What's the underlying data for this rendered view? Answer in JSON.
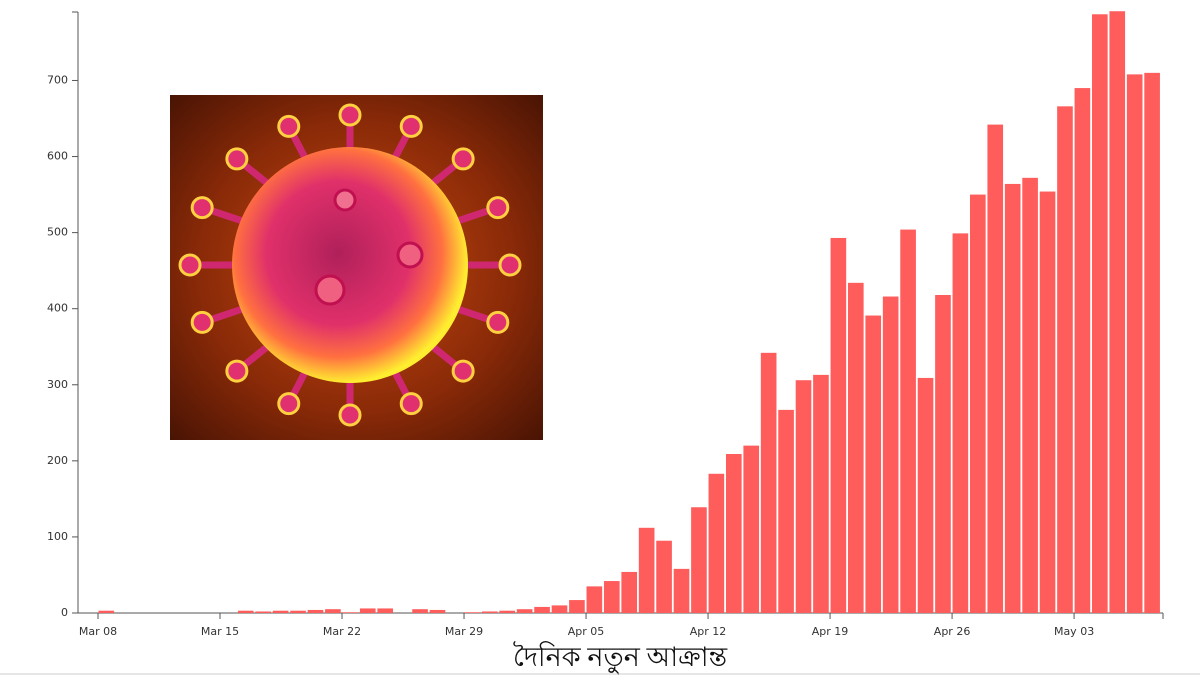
{
  "chart_data": {
    "type": "bar",
    "xlabel": "দৈনিক নতুন আক্রান্ত",
    "categories": [
      "Mar 08",
      null,
      null,
      null,
      null,
      null,
      null,
      "Mar 15",
      null,
      null,
      null,
      null,
      null,
      null,
      "Mar 22",
      null,
      null,
      null,
      null,
      null,
      null,
      "Mar 29",
      null,
      null,
      null,
      null,
      null,
      null,
      "Apr 05",
      null,
      null,
      null,
      null,
      null,
      null,
      "Apr 12",
      null,
      null,
      null,
      null,
      null,
      null,
      "Apr 19",
      null,
      null,
      null,
      null,
      null,
      null,
      "Apr 26",
      null,
      null,
      null,
      null,
      null,
      null,
      "May 03",
      null,
      null,
      null,
      null
    ],
    "values": [
      3,
      0,
      0,
      0,
      0,
      0,
      0,
      0,
      3,
      2,
      3,
      3,
      4,
      5,
      1,
      6,
      6,
      0,
      5,
      4,
      0,
      1,
      2,
      3,
      5,
      8,
      10,
      17,
      35,
      42,
      54,
      112,
      95,
      58,
      139,
      183,
      209,
      220,
      342,
      267,
      306,
      313,
      493,
      434,
      391,
      416,
      504,
      309,
      418,
      499,
      550,
      642,
      564,
      572,
      554,
      666,
      690,
      787,
      791,
      708,
      710
    ],
    "color": "#ff5c5c",
    "ylim": [
      0,
      790
    ],
    "yticks": [
      0,
      100,
      200,
      300,
      400,
      500,
      600,
      700
    ]
  }
}
